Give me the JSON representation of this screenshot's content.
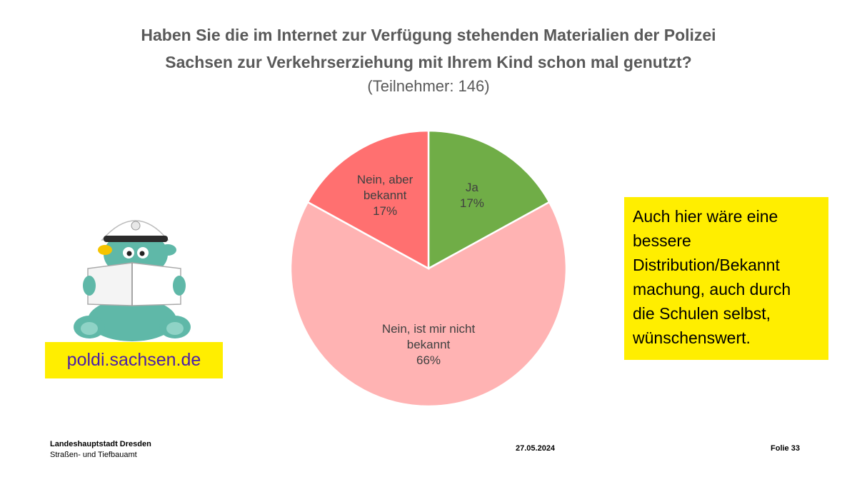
{
  "chart_data": {
    "type": "pie",
    "title": "Haben Sie die im Internet zur Verfügung stehenden Materialien der Polizei Sachsen zur Verkehrserziehung mit Ihrem Kind schon mal genutzt?",
    "subtitle": "(Teilnehmer: 146)",
    "slices": [
      {
        "label_lines": [
          "Ja"
        ],
        "value": 17,
        "value_text": "17%",
        "color": "#70ad47"
      },
      {
        "label_lines": [
          "Nein, ist mir nicht",
          "bekannt"
        ],
        "value": 66,
        "value_text": "66%",
        "color": "#ffb3b3"
      },
      {
        "label_lines": [
          "Nein, aber",
          "bekannt"
        ],
        "value": 17,
        "value_text": "17%",
        "color": "#ff7070"
      }
    ]
  },
  "title": {
    "line1": "Haben Sie die im Internet zur Verfügung stehenden Materialien der Polizei",
    "line2": "Sachsen zur Verkehrserziehung mit Ihrem Kind schon mal genutzt?",
    "subtitle": "(Teilnehmer: 146)"
  },
  "note": {
    "lines": [
      "Auch hier wäre eine",
      "bessere",
      "Distribution/Bekannt",
      "machung, auch durch",
      "die Schulen selbst,",
      "wünschenswert."
    ]
  },
  "url_box": {
    "text": "poldi.sachsen.de"
  },
  "footer": {
    "org_name": "Landeshauptstadt Dresden",
    "org_dept": "Straßen- und Tiefbauamt",
    "date": "27.05.2024",
    "slide": "Folie 33"
  },
  "colors": {
    "highlight": "#ffee00",
    "url_text": "#4b1fa8",
    "title": "#595959"
  }
}
